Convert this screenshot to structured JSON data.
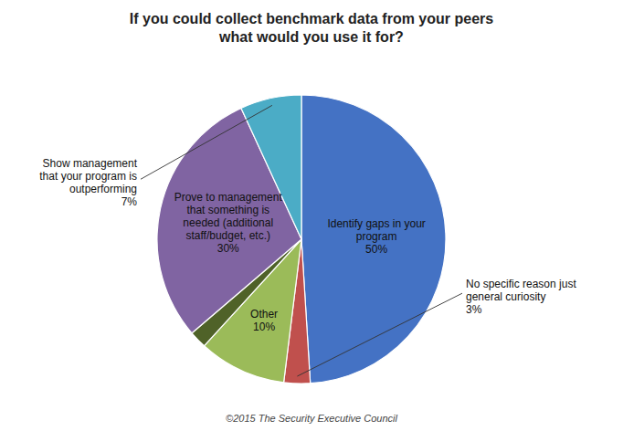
{
  "chart_data": {
    "type": "pie",
    "title": "If you could collect benchmark data from your peers\nwhat would you use it for?",
    "footer": "©2015 The Security Executive Council",
    "categories": [
      "Identify gaps in your\nprogram",
      "No specific reason just\ngeneral curiosity",
      "Other",
      null,
      "Prove to management\nthat something is\nneeded (additional\nstaff/budget, etc.)",
      "Show management\nthat your program is\noutperforming"
    ],
    "values": [
      50,
      3,
      10,
      2,
      30,
      7
    ],
    "value_labels": [
      "50%",
      "3%",
      "10%",
      null,
      "30%",
      "7%"
    ],
    "data_labels": true,
    "colors": [
      "#4472C4",
      "#C0504D",
      "#9BBB59",
      "#4F6228",
      "#8064A2",
      "#4BACC6"
    ]
  }
}
